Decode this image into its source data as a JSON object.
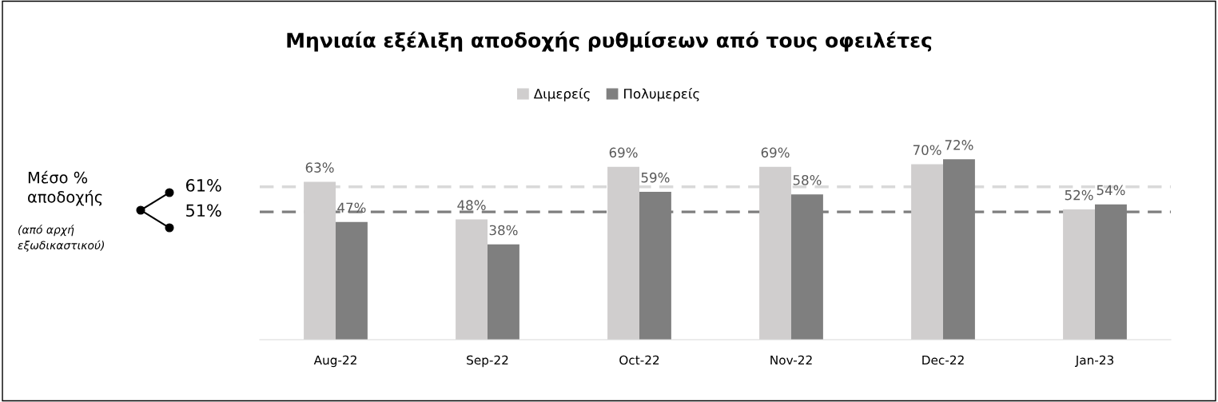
{
  "chart_data": {
    "type": "bar",
    "title": "Μηνιαία εξέλιξη αποδοχής ρυθμίσεων από τους οφειλέτες",
    "categories": [
      "Aug-22",
      "Sep-22",
      "Oct-22",
      "Nov-22",
      "Dec-22",
      "Jan-23"
    ],
    "series": [
      {
        "name": "Διμερείς",
        "color": "#d0cece",
        "values": [
          63,
          48,
          69,
          69,
          70,
          52
        ],
        "value_labels": [
          "63%",
          "48%",
          "69%",
          "69%",
          "70%",
          "52%"
        ]
      },
      {
        "name": "Πολυμερείς",
        "color": "#7f7f7f",
        "values": [
          47,
          38,
          59,
          58,
          72,
          54
        ],
        "value_labels": [
          "47%",
          "38%",
          "59%",
          "58%",
          "72%",
          "54%"
        ]
      }
    ],
    "ref_lines": [
      {
        "axis": "y",
        "value": 61,
        "label": "61%",
        "color": "#d9d9d9",
        "line_style": "dashed"
      },
      {
        "axis": "y",
        "value": 51,
        "label": "51%",
        "color": "#7f7f7f",
        "line_style": "dashed"
      }
    ],
    "annotations": [
      "Μέσο %\nαποδοχής",
      "(από αρχή\nεξωδικαστικού)"
    ],
    "legend": "top",
    "grid": false,
    "tick_labels": "x"
  }
}
